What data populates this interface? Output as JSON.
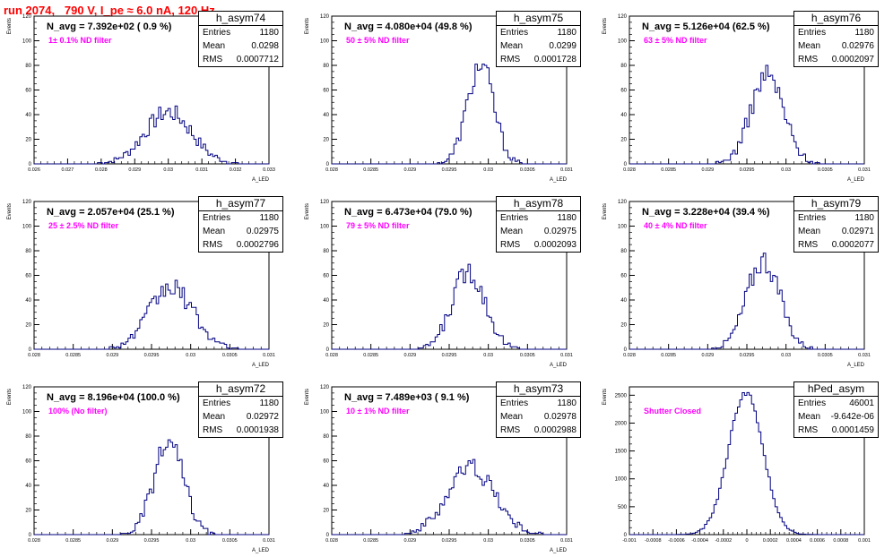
{
  "title": "run 2074,   790 V, I_pe ≈ 6.0 nA, 120 Hz",
  "colors": {
    "line": "#000080",
    "title": "#ff0000",
    "note": "#ff00ff"
  },
  "stat_labels": {
    "entries": "Entries",
    "mean": "Mean",
    "rms": "RMS"
  },
  "panels": [
    {
      "name": "h_asym74",
      "navg": "N_avg = 7.392e+02 ( 0.9 %)",
      "note": "1± 0.1% ND filter",
      "entries": "1180",
      "mean": "0.0298",
      "rms": "0.0007712",
      "ylabel": "Events",
      "xlabel": "A_LED",
      "ymax": 120,
      "yticks": [
        0,
        20,
        40,
        60,
        80,
        100,
        120
      ],
      "xmin": 0.026,
      "xmax": 0.033,
      "xticks": [
        "0.026",
        "0.027",
        "0.028",
        "0.029",
        "0.03",
        "0.031",
        "0.032",
        "0.033"
      ],
      "peak": 0.03,
      "w": 0.0007,
      "amp": 42
    },
    {
      "name": "h_asym75",
      "navg": "N_avg = 4.080e+04 (49.8 %)",
      "note": "50 ± 5% ND filter",
      "entries": "1180",
      "mean": "0.0299",
      "rms": "0.0001728",
      "ylabel": "Events",
      "xlabel": "A_LED",
      "ymax": 120,
      "yticks": [
        0,
        20,
        40,
        60,
        80,
        100,
        120
      ],
      "xmin": 0.028,
      "xmax": 0.031,
      "xticks": [
        "0.028",
        "0.0285",
        "0.029",
        "0.0295",
        "0.03",
        "0.0305",
        "0.031"
      ],
      "peak": 0.0299,
      "w": 0.00017,
      "amp": 80
    },
    {
      "name": "h_asym76",
      "navg": "N_avg = 5.126e+04 (62.5 %)",
      "note": "63 ± 5% ND filter",
      "entries": "1180",
      "mean": "0.02976",
      "rms": "0.0002097",
      "ylabel": "Events",
      "xlabel": "A_LED",
      "ymax": 120,
      "yticks": [
        0,
        20,
        40,
        60,
        80,
        100,
        120
      ],
      "xmin": 0.028,
      "xmax": 0.031,
      "xticks": [
        "0.028",
        "0.0285",
        "0.029",
        "0.0295",
        "0.03",
        "0.0305",
        "0.031"
      ],
      "peak": 0.02976,
      "w": 0.00021,
      "amp": 72
    },
    {
      "name": "h_asym77",
      "navg": "N_avg = 2.057e+04 (25.1 %)",
      "note": "25 ± 2.5% ND filter",
      "entries": "1180",
      "mean": "0.02975",
      "rms": "0.0002796",
      "ylabel": "Events",
      "xlabel": "A_LED",
      "ymax": 120,
      "yticks": [
        0,
        20,
        40,
        60,
        80,
        100,
        120
      ],
      "xmin": 0.028,
      "xmax": 0.031,
      "xticks": [
        "0.028",
        "0.0285",
        "0.029",
        "0.0295",
        "0.03",
        "0.0305",
        "0.031"
      ],
      "peak": 0.02975,
      "w": 0.00028,
      "amp": 50
    },
    {
      "name": "h_asym78",
      "navg": "N_avg = 6.473e+04 (79.0 %)",
      "note": "79 ± 5% ND filter",
      "entries": "1180",
      "mean": "0.02975",
      "rms": "0.0002093",
      "ylabel": "Events",
      "xlabel": "A_LED",
      "ymax": 120,
      "yticks": [
        0,
        20,
        40,
        60,
        80,
        100,
        120
      ],
      "xmin": 0.028,
      "xmax": 0.031,
      "xticks": [
        "0.028",
        "0.0285",
        "0.029",
        "0.0295",
        "0.03",
        "0.0305",
        "0.031"
      ],
      "peak": 0.02975,
      "w": 0.00021,
      "amp": 64
    },
    {
      "name": "h_asym79",
      "navg": "N_avg = 3.228e+04 (39.4 %)",
      "note": "40 ± 4% ND filter",
      "entries": "1180",
      "mean": "0.02971",
      "rms": "0.0002077",
      "ylabel": "Events",
      "xlabel": "A_LED",
      "ymax": 120,
      "yticks": [
        0,
        20,
        40,
        60,
        80,
        100,
        120
      ],
      "xmin": 0.028,
      "xmax": 0.031,
      "xticks": [
        "0.028",
        "0.0285",
        "0.029",
        "0.0295",
        "0.03",
        "0.0305",
        "0.031"
      ],
      "peak": 0.02971,
      "w": 0.00021,
      "amp": 72
    },
    {
      "name": "h_asym72",
      "navg": "N_avg = 8.196e+04 (100.0 %)",
      "note": "100% (No filter)",
      "entries": "1180",
      "mean": "0.02972",
      "rms": "0.0001938",
      "ylabel": "Events",
      "xlabel": "A_LED",
      "ymax": 120,
      "yticks": [
        0,
        20,
        40,
        60,
        80,
        100,
        120
      ],
      "xmin": 0.028,
      "xmax": 0.031,
      "xticks": [
        "0.028",
        "0.0285",
        "0.029",
        "0.0295",
        "0.03",
        "0.0305",
        "0.031"
      ],
      "peak": 0.02972,
      "w": 0.00019,
      "amp": 74
    },
    {
      "name": "h_asym73",
      "navg": "N_avg = 7.489e+03 ( 9.1 %)",
      "note": "10 ± 1% ND filter",
      "entries": "1180",
      "mean": "0.02978",
      "rms": "0.0002988",
      "ylabel": "Events",
      "xlabel": "A_LED",
      "ymax": 120,
      "yticks": [
        0,
        20,
        40,
        60,
        80,
        100,
        120
      ],
      "xmin": 0.028,
      "xmax": 0.031,
      "xticks": [
        "0.028",
        "0.0285",
        "0.029",
        "0.0295",
        "0.03",
        "0.0305",
        "0.031"
      ],
      "peak": 0.02978,
      "w": 0.0003,
      "amp": 55
    },
    {
      "name": "hPed_asym",
      "navg": "",
      "note": "Shutter Closed",
      "entries": "46001",
      "mean": "-9.642e-06",
      "rms": "0.0001459",
      "ylabel": "Events",
      "xlabel": "",
      "ymax": 2650,
      "yticks": [
        0,
        500,
        1000,
        1500,
        2000,
        2500
      ],
      "xmin": -0.001,
      "xmax": 0.001,
      "xticks": [
        "-0.001",
        "-0.0008",
        "-0.0006",
        "-0.0004",
        "-0.0002",
        "0",
        "0.0002",
        "0.0004",
        "0.0006",
        "0.0008",
        "0.001"
      ],
      "peak": -1e-05,
      "w": 0.000146,
      "amp": 2550
    }
  ],
  "chart_data": [
    {
      "type": "bar",
      "name": "h_asym74",
      "xlabel": "A_LED",
      "ylabel": "Events",
      "xlim": [
        0.026,
        0.033
      ],
      "ylim": [
        0,
        120
      ],
      "entries": 1180,
      "mean": 0.0298,
      "rms": 0.0007712,
      "peak_bin_value": 50
    },
    {
      "type": "bar",
      "name": "h_asym75",
      "xlabel": "A_LED",
      "ylabel": "Events",
      "xlim": [
        0.028,
        0.031
      ],
      "ylim": [
        0,
        120
      ],
      "entries": 1180,
      "mean": 0.0299,
      "rms": 0.0001728,
      "peak_bin_value": 82
    },
    {
      "type": "bar",
      "name": "h_asym76",
      "xlabel": "A_LED",
      "ylabel": "Events",
      "xlim": [
        0.028,
        0.031
      ],
      "ylim": [
        0,
        120
      ],
      "entries": 1180,
      "mean": 0.02976,
      "rms": 0.0002097,
      "peak_bin_value": 82
    },
    {
      "type": "bar",
      "name": "h_asym77",
      "xlabel": "A_LED",
      "ylabel": "Events",
      "xlim": [
        0.028,
        0.031
      ],
      "ylim": [
        0,
        120
      ],
      "entries": 1180,
      "mean": 0.02975,
      "rms": 0.0002796,
      "peak_bin_value": 54
    },
    {
      "type": "bar",
      "name": "h_asym78",
      "xlabel": "A_LED",
      "ylabel": "Events",
      "xlim": [
        0.028,
        0.031
      ],
      "ylim": [
        0,
        120
      ],
      "entries": 1180,
      "mean": 0.02975,
      "rms": 0.0002093,
      "peak_bin_value": 66
    },
    {
      "type": "bar",
      "name": "h_asym79",
      "xlabel": "A_LED",
      "ylabel": "Events",
      "xlim": [
        0.028,
        0.031
      ],
      "ylim": [
        0,
        120
      ],
      "entries": 1180,
      "mean": 0.02971,
      "rms": 0.0002077,
      "peak_bin_value": 80
    },
    {
      "type": "bar",
      "name": "h_asym72",
      "xlabel": "A_LED",
      "ylabel": "Events",
      "xlim": [
        0.028,
        0.031
      ],
      "ylim": [
        0,
        120
      ],
      "entries": 1180,
      "mean": 0.02972,
      "rms": 0.0001938,
      "peak_bin_value": 80
    },
    {
      "type": "bar",
      "name": "h_asym73",
      "xlabel": "A_LED",
      "ylabel": "Events",
      "xlim": [
        0.028,
        0.031
      ],
      "ylim": [
        0,
        120
      ],
      "entries": 1180,
      "mean": 0.02978,
      "rms": 0.0002988,
      "peak_bin_value": 61
    },
    {
      "type": "bar",
      "name": "hPed_asym",
      "ylabel": "Events",
      "xlim": [
        -0.001,
        0.001
      ],
      "ylim": [
        0,
        2650
      ],
      "entries": 46001,
      "mean": -9.642e-06,
      "rms": 0.0001459,
      "peak_bin_value": 2560
    }
  ]
}
